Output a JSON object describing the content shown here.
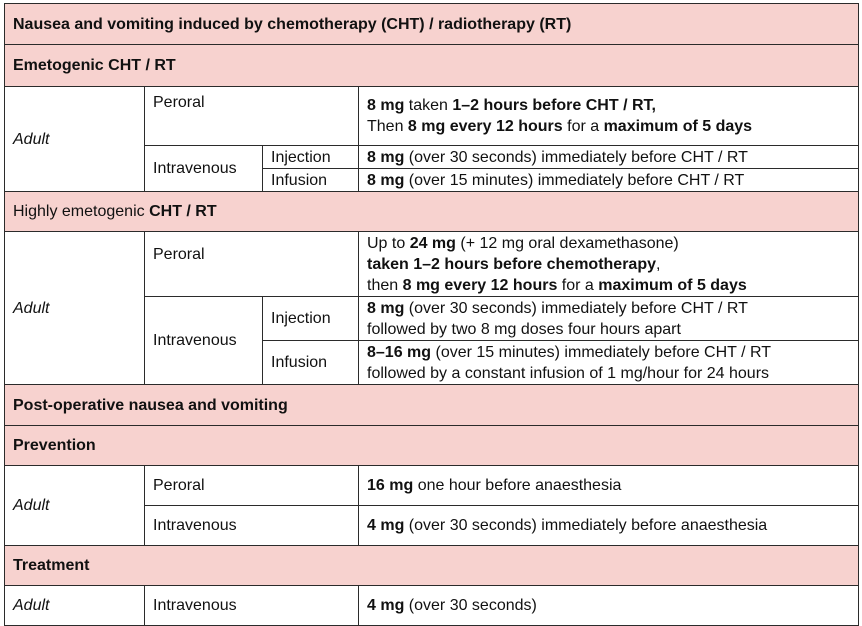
{
  "title": "Nausea and vomiting induced by chemotherapy (CHT) / radiotherapy (RT)",
  "sections": {
    "emetogenic": {
      "heading": "Emetogenic CHT / RT",
      "adult": "Adult",
      "peroral": "Peroral",
      "intravenous": "Intravenous",
      "injection": "Injection",
      "infusion": "Infusion",
      "peroral_dose": {
        "l1_dose": "8 mg",
        "l1_mid": " taken ",
        "l1_time": "1–2 hours before CHT / RT,",
        "l2_then": "Then ",
        "l2_dose": "8 mg every 12 hours",
        "l2_mid": " for a ",
        "l2_max": "maximum of 5 days"
      },
      "injection_dose": {
        "dose": "8 mg",
        "rest": " (over 30 seconds) immediately before CHT / RT"
      },
      "infusion_dose": {
        "dose": "8 mg",
        "rest": " (over 15 minutes) immediately before CHT / RT"
      }
    },
    "highly": {
      "heading_pre": "Highly emetogenic ",
      "heading_post": "CHT / RT",
      "adult": "Adult",
      "peroral": "Peroral",
      "intravenous": "Intravenous",
      "injection": "Injection",
      "infusion": "Infusion",
      "peroral_dose": {
        "l1_pre": "Up to ",
        "l1_dose": "24 mg",
        "l1_rest": " (+ 12 mg oral dexamethasone)",
        "l2_bold": "taken 1–2 hours before chemotherapy",
        "l2_rest": ",",
        "l3_then": "then ",
        "l3_dose": "8 mg every 12 hours",
        "l3_mid": " for a ",
        "l3_max": "maximum of 5 days"
      },
      "injection_dose": {
        "dose": "8 mg",
        "rest": " (over 30 seconds) immediately before CHT / RT",
        "l2": "followed by two 8 mg doses four hours apart"
      },
      "infusion_dose": {
        "dose": "8–16 mg",
        "rest": " (over 15 minutes) immediately before CHT / RT",
        "l2": "followed by a constant infusion of 1 mg/hour for 24 hours"
      }
    },
    "postop": {
      "heading": "Post-operative nausea and vomiting",
      "prevention": {
        "heading": "Prevention",
        "adult": "Adult",
        "peroral": "Peroral",
        "peroral_dose": {
          "dose": "16 mg",
          "rest": " one hour before anaesthesia"
        },
        "intravenous": "Intravenous",
        "iv_dose": {
          "dose": "4 mg",
          "rest": " (over 30 seconds) immediately before anaesthesia"
        }
      },
      "treatment": {
        "heading": "Treatment",
        "adult": "Adult",
        "intravenous": "Intravenous",
        "iv_dose": {
          "dose": "4 mg",
          "rest": " (over 30 seconds)"
        }
      }
    }
  }
}
